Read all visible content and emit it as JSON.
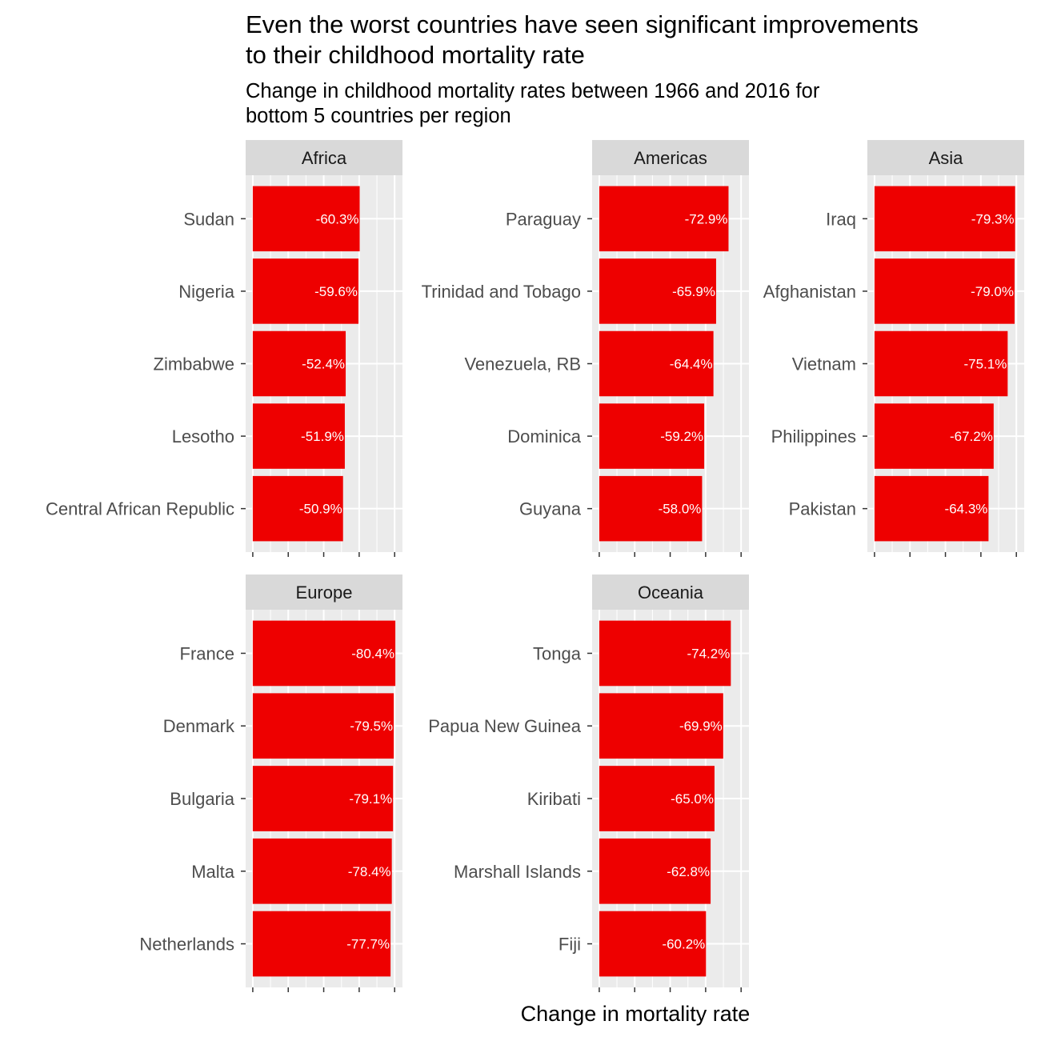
{
  "chart_data": {
    "type": "bar",
    "orientation": "horizontal",
    "title": "Even the worst countries have seen significant improvements\nto their childhood mortality rate",
    "subtitle": "Change in childhood mortality rates between 1966 and 2016 for\nbottom 5 countries per region",
    "xlabel": "Change in mortality rate",
    "ylabel": "",
    "value_unit": "%",
    "bar_color": "#EE0000",
    "panel_color": "#EBEBEB",
    "strip_color": "#D9D9D9",
    "facets": [
      {
        "region": "Africa",
        "categories": [
          "Sudan",
          "Nigeria",
          "Zimbabwe",
          "Lesotho",
          "Central African Republic"
        ],
        "values": [
          -60.3,
          -59.6,
          -52.4,
          -51.9,
          -50.9
        ],
        "value_labels": [
          "-60.3%",
          "-59.6%",
          "-52.4%",
          "-51.9%",
          "-50.9%"
        ]
      },
      {
        "region": "Americas",
        "categories": [
          "Paraguay",
          "Trinidad and Tobago",
          "Venezuela, RB",
          "Dominica",
          "Guyana"
        ],
        "values": [
          -72.9,
          -65.9,
          -64.4,
          -59.2,
          -58.0
        ],
        "value_labels": [
          "-72.9%",
          "-65.9%",
          "-64.4%",
          "-59.2%",
          "-58.0%"
        ]
      },
      {
        "region": "Asia",
        "categories": [
          "Iraq",
          "Afghanistan",
          "Vietnam",
          "Philippines",
          "Pakistan"
        ],
        "values": [
          -79.3,
          -79.0,
          -75.1,
          -67.2,
          -64.3
        ],
        "value_labels": [
          "-79.3%",
          "-79.0%",
          "-75.1%",
          "-67.2%",
          "-64.3%"
        ]
      },
      {
        "region": "Europe",
        "categories": [
          "France",
          "Denmark",
          "Bulgaria",
          "Malta",
          "Netherlands"
        ],
        "values": [
          -80.4,
          -79.5,
          -79.1,
          -78.4,
          -77.7
        ],
        "value_labels": [
          "-80.4%",
          "-79.5%",
          "-79.1%",
          "-78.4%",
          "-77.7%"
        ]
      },
      {
        "region": "Oceania",
        "categories": [
          "Tonga",
          "Papua New Guinea",
          "Kiribati",
          "Marshall Islands",
          "Fiji"
        ],
        "values": [
          -74.2,
          -69.9,
          -65.0,
          -62.8,
          -60.2
        ],
        "value_labels": [
          "-74.2%",
          "-69.9%",
          "-65.0%",
          "-62.8%",
          "-60.2%"
        ]
      }
    ]
  }
}
